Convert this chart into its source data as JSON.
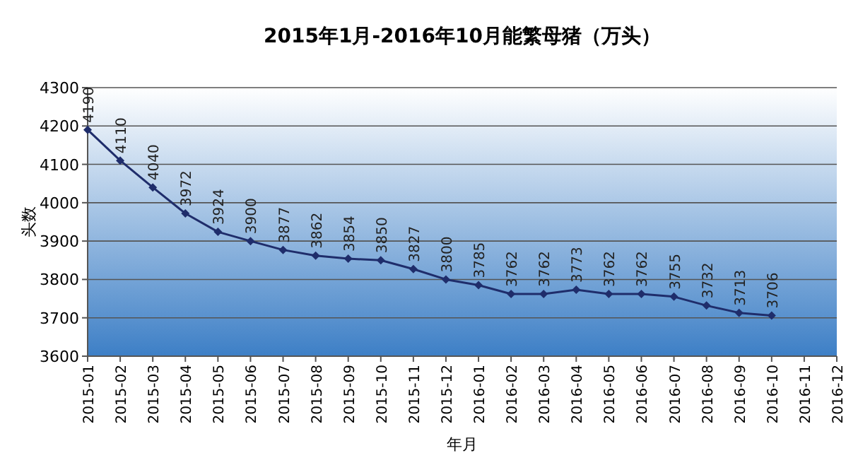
{
  "chart_data": {
    "type": "line",
    "title": "2015年1月-2016年10月能繁母猪（万头）",
    "xlabel": "年月",
    "ylabel": "头数",
    "categories": [
      "2015-01",
      "2015-02",
      "2015-03",
      "2015-04",
      "2015-05",
      "2015-06",
      "2015-07",
      "2015-08",
      "2015-09",
      "2015-10",
      "2015-11",
      "2015-12",
      "2016-01",
      "2016-02",
      "2016-03",
      "2016-04",
      "2016-05",
      "2016-06",
      "2016-07",
      "2016-08",
      "2016-09",
      "2016-10",
      "2016-11",
      "2016-12"
    ],
    "series": [
      {
        "color": "#1f2d6b",
        "values": [
          4190,
          4110,
          4040,
          3972,
          3924,
          3900,
          3877,
          3862,
          3854,
          3850,
          3827,
          3800,
          3785,
          3762,
          3762,
          3773,
          3762,
          3762,
          3755,
          3732,
          3713,
          3706,
          null,
          null
        ]
      }
    ],
    "ylim": [
      3600,
      4300
    ],
    "yticks": [
      3600,
      3700,
      3800,
      3900,
      4000,
      4100,
      4200,
      4300
    ],
    "grid": "y",
    "marker": "diamond",
    "line_style": "solid",
    "data_labels": true
  }
}
